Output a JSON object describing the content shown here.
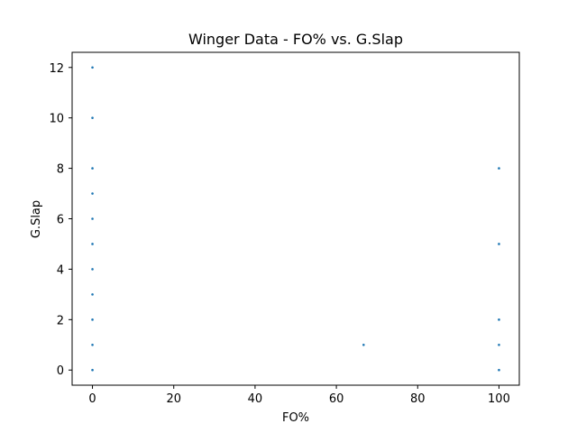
{
  "chart_data": {
    "type": "scatter",
    "title": "Winger Data - FO% vs. G.Slap",
    "xlabel": "FO%",
    "ylabel": "G.Slap",
    "xlim": [
      -5,
      105
    ],
    "ylim": [
      -0.6,
      12.6
    ],
    "xticks": [
      0,
      20,
      40,
      60,
      80,
      100
    ],
    "yticks": [
      0,
      2,
      4,
      6,
      8,
      10,
      12
    ],
    "grid": false,
    "legend": "none",
    "colors": {
      "points": "#1f77b4"
    },
    "series": [
      {
        "points": [
          [
            0,
            0
          ],
          [
            0,
            1
          ],
          [
            0,
            2
          ],
          [
            0,
            3
          ],
          [
            0,
            4
          ],
          [
            0,
            5
          ],
          [
            0,
            6
          ],
          [
            0,
            7
          ],
          [
            0,
            8
          ],
          [
            0,
            10
          ],
          [
            0,
            12
          ],
          [
            66.7,
            1
          ],
          [
            100,
            0
          ],
          [
            100,
            1
          ],
          [
            100,
            2
          ],
          [
            100,
            5
          ],
          [
            100,
            8
          ]
        ]
      }
    ]
  }
}
